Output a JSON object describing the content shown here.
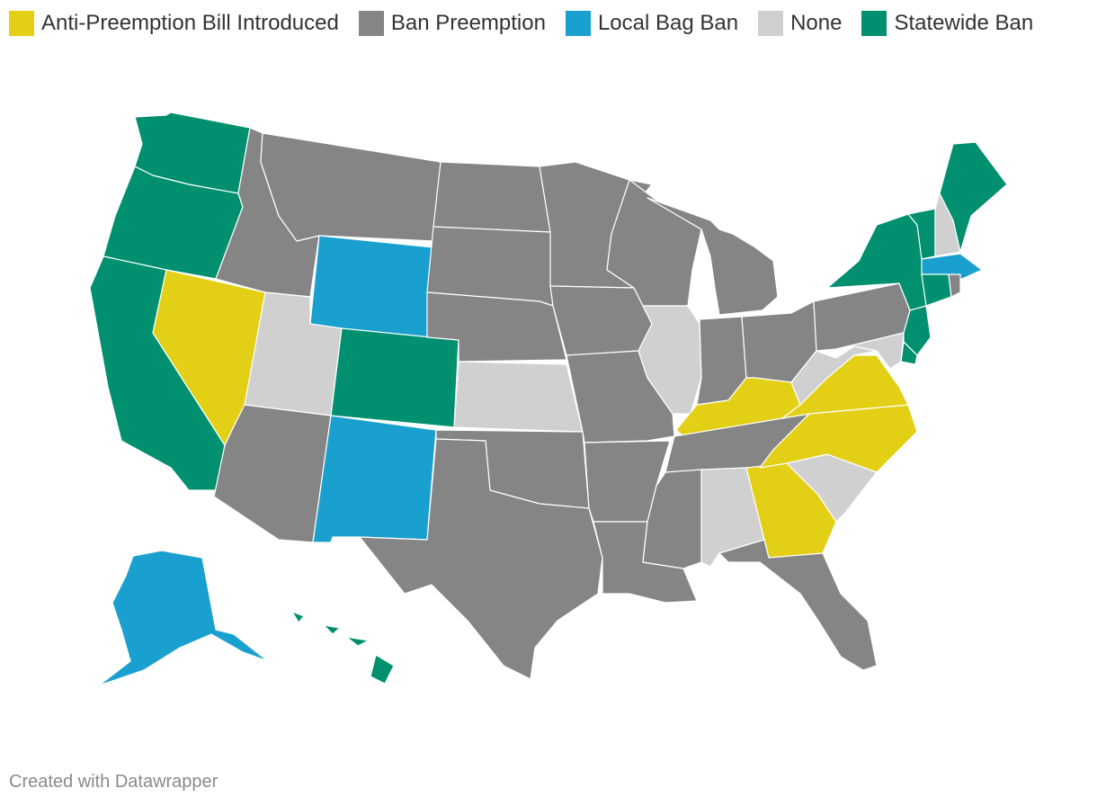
{
  "legend": [
    {
      "label": "Anti-Preemption Bill Introduced",
      "color": "#e3cf16"
    },
    {
      "label": "Ban Preemption",
      "color": "#858585"
    },
    {
      "label": "Local Bag Ban",
      "color": "#1aa0cf"
    },
    {
      "label": "None",
      "color": "#d0d0d0"
    },
    {
      "label": "Statewide Ban",
      "color": "#00906f"
    }
  ],
  "states": [
    {
      "code": "WA",
      "category": "Statewide Ban"
    },
    {
      "code": "OR",
      "category": "Statewide Ban"
    },
    {
      "code": "CA",
      "category": "Statewide Ban"
    },
    {
      "code": "NV",
      "category": "Anti-Preemption Bill Introduced"
    },
    {
      "code": "ID",
      "category": "Ban Preemption"
    },
    {
      "code": "MT",
      "category": "Ban Preemption"
    },
    {
      "code": "WY",
      "category": "Local Bag Ban"
    },
    {
      "code": "UT",
      "category": "None"
    },
    {
      "code": "CO",
      "category": "Statewide Ban"
    },
    {
      "code": "AZ",
      "category": "Ban Preemption"
    },
    {
      "code": "NM",
      "category": "Local Bag Ban"
    },
    {
      "code": "ND",
      "category": "Ban Preemption"
    },
    {
      "code": "SD",
      "category": "Ban Preemption"
    },
    {
      "code": "NE",
      "category": "Ban Preemption"
    },
    {
      "code": "KS",
      "category": "None"
    },
    {
      "code": "OK",
      "category": "Ban Preemption"
    },
    {
      "code": "TX",
      "category": "Ban Preemption"
    },
    {
      "code": "MN",
      "category": "Ban Preemption"
    },
    {
      "code": "IA",
      "category": "Ban Preemption"
    },
    {
      "code": "MO",
      "category": "Ban Preemption"
    },
    {
      "code": "AR",
      "category": "Ban Preemption"
    },
    {
      "code": "LA",
      "category": "Ban Preemption"
    },
    {
      "code": "WI",
      "category": "Ban Preemption"
    },
    {
      "code": "MI",
      "category": "Ban Preemption"
    },
    {
      "code": "IL",
      "category": "None"
    },
    {
      "code": "IN",
      "category": "Ban Preemption"
    },
    {
      "code": "OH",
      "category": "Ban Preemption"
    },
    {
      "code": "KY",
      "category": "Anti-Preemption Bill Introduced"
    },
    {
      "code": "TN",
      "category": "Ban Preemption"
    },
    {
      "code": "MS",
      "category": "Ban Preemption"
    },
    {
      "code": "AL",
      "category": "None"
    },
    {
      "code": "GA",
      "category": "Anti-Preemption Bill Introduced"
    },
    {
      "code": "FL",
      "category": "Ban Preemption"
    },
    {
      "code": "SC",
      "category": "None"
    },
    {
      "code": "NC",
      "category": "Anti-Preemption Bill Introduced"
    },
    {
      "code": "VA",
      "category": "Anti-Preemption Bill Introduced"
    },
    {
      "code": "WV",
      "category": "None"
    },
    {
      "code": "PA",
      "category": "Ban Preemption"
    },
    {
      "code": "NY",
      "category": "Statewide Ban"
    },
    {
      "code": "VT",
      "category": "Statewide Ban"
    },
    {
      "code": "NH",
      "category": "None"
    },
    {
      "code": "ME",
      "category": "Statewide Ban"
    },
    {
      "code": "MA",
      "category": "Local Bag Ban"
    },
    {
      "code": "RI",
      "category": "Ban Preemption"
    },
    {
      "code": "CT",
      "category": "Statewide Ban"
    },
    {
      "code": "NJ",
      "category": "Statewide Ban"
    },
    {
      "code": "DE",
      "category": "Statewide Ban"
    },
    {
      "code": "MD",
      "category": "None"
    },
    {
      "code": "AK",
      "category": "Local Bag Ban"
    },
    {
      "code": "HI",
      "category": "Statewide Ban"
    }
  ],
  "footer": {
    "credit": "Created with Datawrapper"
  }
}
